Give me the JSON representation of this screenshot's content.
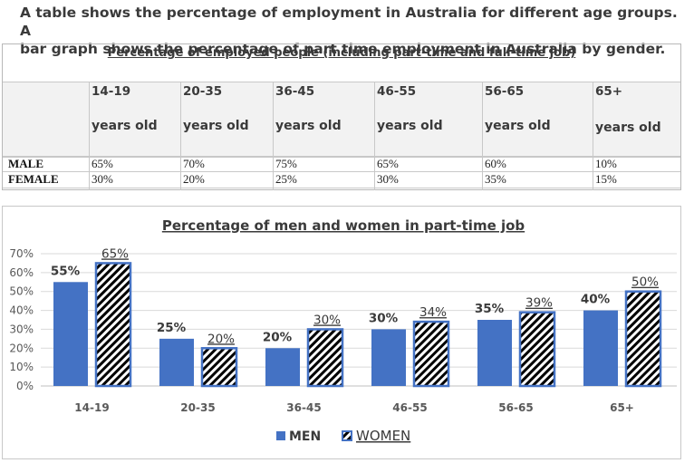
{
  "heading": {
    "line1": "A table shows the percentage of employment in Australia for different age groups. A",
    "line2": "bar graph shows the percentage of part time employment in Australia by gender."
  },
  "table": {
    "title": "Percentage of employed people (including part-time and full-time job)",
    "columns": [
      {
        "top": "14-19",
        "bottom": "years old"
      },
      {
        "top": "20-35",
        "bottom": "years old"
      },
      {
        "top": "36-45",
        "bottom": "years old"
      },
      {
        "top": "46-55",
        "bottom": "years old"
      },
      {
        "top": "56-65",
        "bottom": "years old"
      },
      {
        "top": "65+",
        "bottom": "years old"
      }
    ],
    "rows": [
      {
        "label": "MALE",
        "values": [
          "65%",
          "70%",
          "75%",
          "65%",
          "60%",
          "10%"
        ]
      },
      {
        "label": "FEMALE",
        "values": [
          "30%",
          "20%",
          "25%",
          "30%",
          "35%",
          "15%"
        ]
      }
    ]
  },
  "chart_data": {
    "type": "bar",
    "title": "Percentage of men and women in part-time job",
    "categories": [
      "14-19",
      "20-35",
      "36-45",
      "46-55",
      "56-65",
      "65+"
    ],
    "series": [
      {
        "name": "MEN",
        "values": [
          55,
          25,
          20,
          30,
          35,
          40
        ],
        "labels": [
          "55%",
          "25%",
          "20%",
          "30%",
          "35%",
          "40%"
        ],
        "color": "#4472c4"
      },
      {
        "name": "WOMEN",
        "values": [
          65,
          20,
          30,
          34,
          39,
          50
        ],
        "labels": [
          "65%",
          "20%",
          "30%",
          "34%",
          "39%",
          "50%"
        ],
        "color": "#4472c4",
        "pattern": "diagonal-hatch"
      }
    ],
    "ylim": [
      0,
      70
    ],
    "yticks": [
      "0%",
      "10%",
      "20%",
      "30%",
      "40%",
      "50%",
      "60%",
      "70%"
    ],
    "xlabel": "",
    "ylabel": "",
    "grid": true,
    "legend": "bottom-center"
  }
}
